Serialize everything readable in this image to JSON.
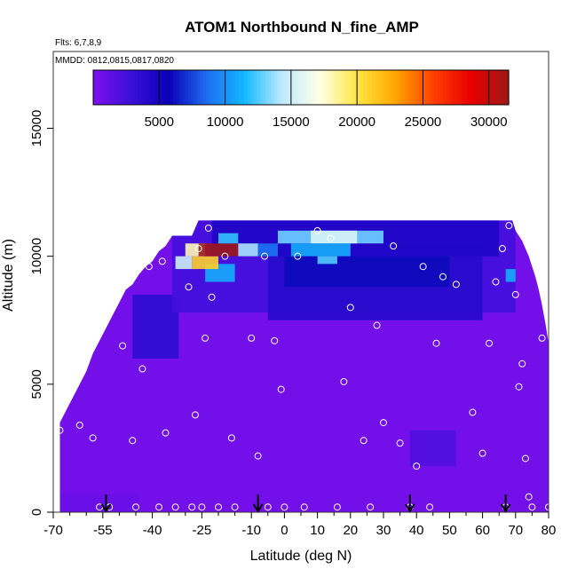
{
  "chart_data": {
    "type": "heatmap",
    "title": "ATOM1 Northbound N_fine_AMP",
    "flights_label": "Flts: 6,7,8,9",
    "dates_label": "MMDD: 0812,0815,0817,0820",
    "xlabel": "Latitude (deg N)",
    "ylabel": "Altitude (m)",
    "xlim": [
      -70,
      80
    ],
    "ylim": [
      0,
      18000
    ],
    "x_ticks": [
      -70,
      -55,
      -40,
      -25,
      -10,
      0,
      10,
      20,
      30,
      40,
      50,
      60,
      70,
      80
    ],
    "x_tick_labels": [
      "-70",
      "-55",
      "-40",
      "-25",
      "-10",
      "0",
      "10",
      "20",
      "30",
      "40",
      "50",
      "60",
      "70",
      "80"
    ],
    "x_minor_ticks": [
      -65,
      -60,
      -50,
      -45,
      -35,
      -30,
      -20,
      -15,
      -5,
      5,
      15,
      25,
      35,
      45,
      55,
      65,
      75
    ],
    "y_ticks": [
      0,
      5000,
      10000,
      15000
    ],
    "y_tick_labels": [
      "0",
      "5000",
      "10000",
      "15000"
    ],
    "colorbar": {
      "range": [
        0,
        31500
      ],
      "ticks": [
        5000,
        10000,
        15000,
        20000,
        25000,
        30000
      ],
      "tick_labels": [
        "5000",
        "10000",
        "15000",
        "20000",
        "25000",
        "30000"
      ],
      "colors": [
        "#7f10ee",
        "#3a10d8",
        "#0a00b8",
        "#1e6cf0",
        "#12b8ff",
        "#bfeaff",
        "#ffffe6",
        "#ffe640",
        "#ffa500",
        "#ff4000",
        "#e80000",
        "#a01818"
      ]
    },
    "envelope": {
      "lat": [
        -68,
        -66,
        -64,
        -62,
        -60,
        -58,
        -56,
        -54,
        -52,
        -50,
        -48,
        -46,
        -44,
        -42,
        -40,
        -38,
        -36,
        -34,
        -32,
        -30,
        -28,
        -26,
        -24,
        69,
        70,
        71,
        72,
        73,
        74,
        75,
        76,
        77,
        78,
        79,
        80
      ],
      "top_alt": [
        3500,
        4000,
        4500,
        5000,
        5500,
        6200,
        6700,
        7200,
        7700,
        8200,
        8700,
        8900,
        9300,
        9600,
        9800,
        10200,
        10400,
        10800,
        10800,
        10800,
        10800,
        11400,
        11400,
        11400,
        11000,
        10800,
        10600,
        10300,
        10000,
        9600,
        9200,
        8700,
        8100,
        7400,
        6600
      ]
    },
    "cells": [
      {
        "lat_min": -68,
        "lat_max": 80,
        "alt_min": 0,
        "alt_max": 11400,
        "value": 500
      },
      {
        "lat_min": -46,
        "lat_max": -32,
        "alt_min": 6000,
        "alt_max": 8500,
        "value": 3500
      },
      {
        "lat_min": -34,
        "lat_max": 70,
        "alt_min": 7800,
        "alt_max": 11400,
        "value": 2500
      },
      {
        "lat_min": -5,
        "lat_max": 60,
        "alt_min": 7500,
        "alt_max": 10400,
        "value": 4000
      },
      {
        "lat_min": 0,
        "lat_max": 50,
        "alt_min": 8800,
        "alt_max": 10000,
        "value": 6000
      },
      {
        "lat_min": -22,
        "lat_max": 65,
        "alt_min": 10000,
        "alt_max": 11400,
        "value": 4500
      },
      {
        "lat_min": -24,
        "lat_max": -15,
        "alt_min": 9000,
        "alt_max": 9700,
        "value": 11000
      },
      {
        "lat_min": -33,
        "lat_max": -28,
        "alt_min": 9500,
        "alt_max": 10000,
        "value": 15000
      },
      {
        "lat_min": -28,
        "lat_max": -20,
        "alt_min": 9500,
        "alt_max": 10000,
        "value": 21000
      },
      {
        "lat_min": -30,
        "lat_max": -24,
        "alt_min": 10000,
        "alt_max": 10500,
        "value": 18000
      },
      {
        "lat_min": -26,
        "lat_max": -14,
        "alt_min": 10000,
        "alt_max": 10500,
        "value": 31500
      },
      {
        "lat_min": -14,
        "lat_max": -8,
        "alt_min": 10000,
        "alt_max": 10500,
        "value": 14000
      },
      {
        "lat_min": -8,
        "lat_max": -2,
        "alt_min": 10000,
        "alt_max": 10500,
        "value": 9000
      },
      {
        "lat_min": -20,
        "lat_max": -14,
        "alt_min": 10500,
        "alt_max": 10900,
        "value": 12000
      },
      {
        "lat_min": -2,
        "lat_max": 30,
        "alt_min": 10500,
        "alt_max": 11000,
        "value": 13000
      },
      {
        "lat_min": 8,
        "lat_max": 22,
        "alt_min": 10500,
        "alt_max": 11000,
        "value": 15500
      },
      {
        "lat_min": 2,
        "lat_max": 20,
        "alt_min": 10000,
        "alt_max": 10500,
        "value": 11000
      },
      {
        "lat_min": 10,
        "lat_max": 16,
        "alt_min": 9700,
        "alt_max": 10000,
        "value": 12500
      },
      {
        "lat_min": 67,
        "lat_max": 70,
        "alt_min": 9000,
        "alt_max": 9500,
        "value": 11000
      },
      {
        "lat_min": -68,
        "lat_max": -44,
        "alt_min": 0,
        "alt_max": 700,
        "value": 900
      },
      {
        "lat_min": 38,
        "lat_max": 52,
        "alt_min": 1800,
        "alt_max": 3200,
        "value": 2000
      }
    ],
    "samples": {
      "lat": [
        -68,
        -62,
        -58,
        -56,
        -53,
        -49,
        -47,
        -46,
        -45,
        -43,
        -41,
        -38,
        -37,
        -36,
        -33,
        -29,
        -28,
        -27,
        -26,
        -25,
        -24,
        -23,
        -22,
        -20,
        -18,
        -16,
        -15,
        -10,
        -8,
        -6,
        -5,
        -3,
        -1,
        0,
        4,
        6,
        10,
        14,
        16,
        18,
        20,
        24,
        26,
        28,
        30,
        33,
        35,
        38,
        40,
        42,
        44,
        46,
        48,
        52,
        57,
        60,
        62,
        64,
        66,
        67,
        68,
        70,
        71,
        72,
        73,
        74,
        75,
        76,
        78,
        80
      ],
      "alt": [
        3200,
        3400,
        2900,
        200,
        200,
        6500,
        9300,
        2800,
        200,
        5600,
        9600,
        200,
        9800,
        3100,
        200,
        8800,
        200,
        3800,
        10300,
        200,
        6800,
        11100,
        8400,
        200,
        10000,
        2900,
        200,
        6800,
        2200,
        10000,
        200,
        6700,
        4800,
        200,
        10000,
        200,
        11000,
        10700,
        200,
        5100,
        8000,
        2800,
        200,
        7300,
        3500,
        10400,
        2700,
        200,
        1800,
        9600,
        200,
        6600,
        9200,
        8900,
        3900,
        2300,
        6600,
        9000,
        10300,
        200,
        11200,
        8500,
        4900,
        5800,
        2100,
        600,
        200,
        9900,
        6800,
        200
      ]
    },
    "arrows_lat": [
      -54,
      -8,
      38,
      67
    ]
  }
}
